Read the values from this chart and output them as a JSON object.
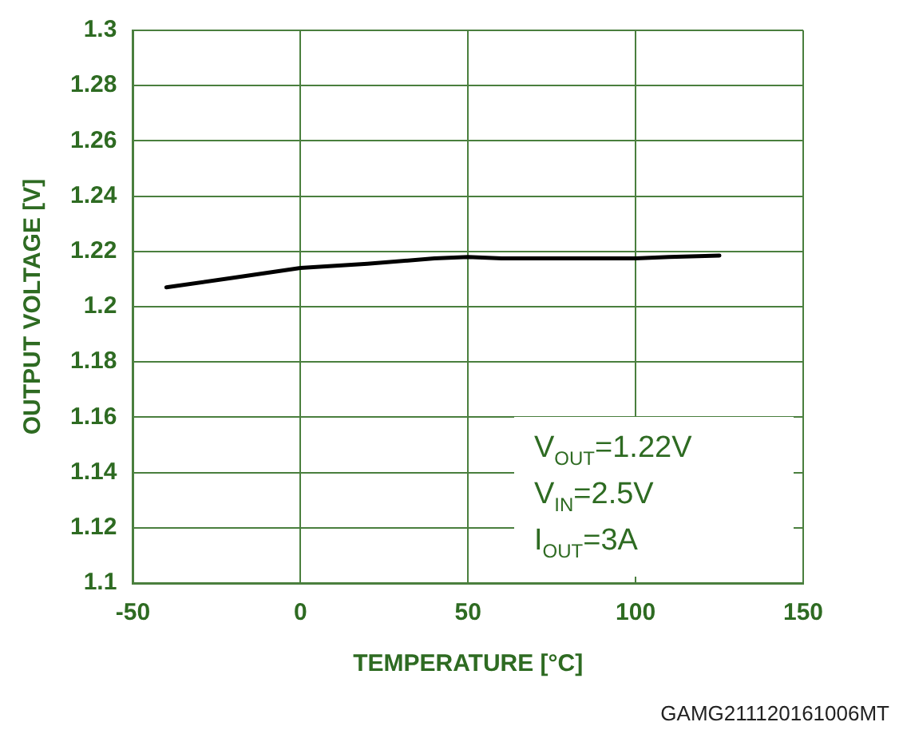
{
  "chart_data": {
    "type": "line",
    "xlabel": "TEMPERATURE [°C]",
    "ylabel": "OUTPUT VOLTAGE [V]",
    "x": [
      -40,
      -20,
      0,
      20,
      40,
      50,
      60,
      100,
      110,
      125
    ],
    "series": [
      {
        "color": "#000000",
        "values": [
          1.207,
          1.2105,
          1.214,
          1.2155,
          1.2175,
          1.218,
          1.2175,
          1.2175,
          1.218,
          1.2185
        ]
      }
    ],
    "xlim": [
      -50,
      150
    ],
    "xticks": [
      -50,
      0,
      50,
      100,
      150
    ],
    "ylim": [
      1.1,
      1.3
    ],
    "yticks": [
      1.1,
      1.12,
      1.14,
      1.16,
      1.18,
      1.2,
      1.22,
      1.24,
      1.26,
      1.28,
      1.3
    ],
    "grid": true,
    "legend": false,
    "marker": "none",
    "line_style": "solid",
    "annotations": [
      "V$_{OUT}$=1.22V",
      "V$_{IN}$=2.5V",
      "I$_{OUT}$=3A",
      "GAMG211120161006MT"
    ]
  }
}
